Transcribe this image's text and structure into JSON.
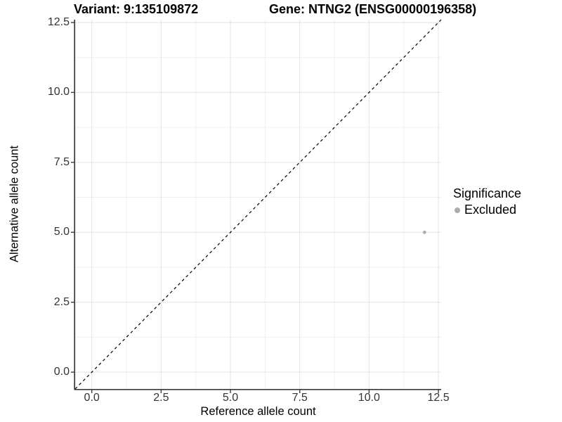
{
  "chart_data": {
    "type": "scatter",
    "title_left": "Variant: 9:135109872",
    "title_right": "Gene: NTNG2 (ENSG00000196358)",
    "xlabel": "Reference allele count",
    "ylabel": "Alternative allele count",
    "axis_range": [
      -0.6,
      12.6
    ],
    "ticks": [
      0,
      2.5,
      5,
      7.5,
      10,
      12.5
    ],
    "tick_labels": [
      "0.0",
      "2.5",
      "5.0",
      "7.5",
      "10.0",
      "12.5"
    ],
    "minor_ticks": [
      1.25,
      3.75,
      6.25,
      8.75,
      11.25
    ],
    "grid": true,
    "identity_line": {
      "style": "dashed",
      "equation": "y = x",
      "color": "#000000"
    },
    "points": [
      {
        "x": 12,
        "y": 5,
        "significance": "Excluded"
      }
    ],
    "legend": {
      "title": "Significance",
      "position": "right",
      "items": [
        {
          "label": "Excluded",
          "color": "#ababab"
        }
      ]
    },
    "colors": {
      "point": "#ababab",
      "grid_major": "#e2e2e2",
      "grid_minor": "#efefef",
      "axis": "#3a3a3a",
      "background": "#ffffff"
    }
  }
}
